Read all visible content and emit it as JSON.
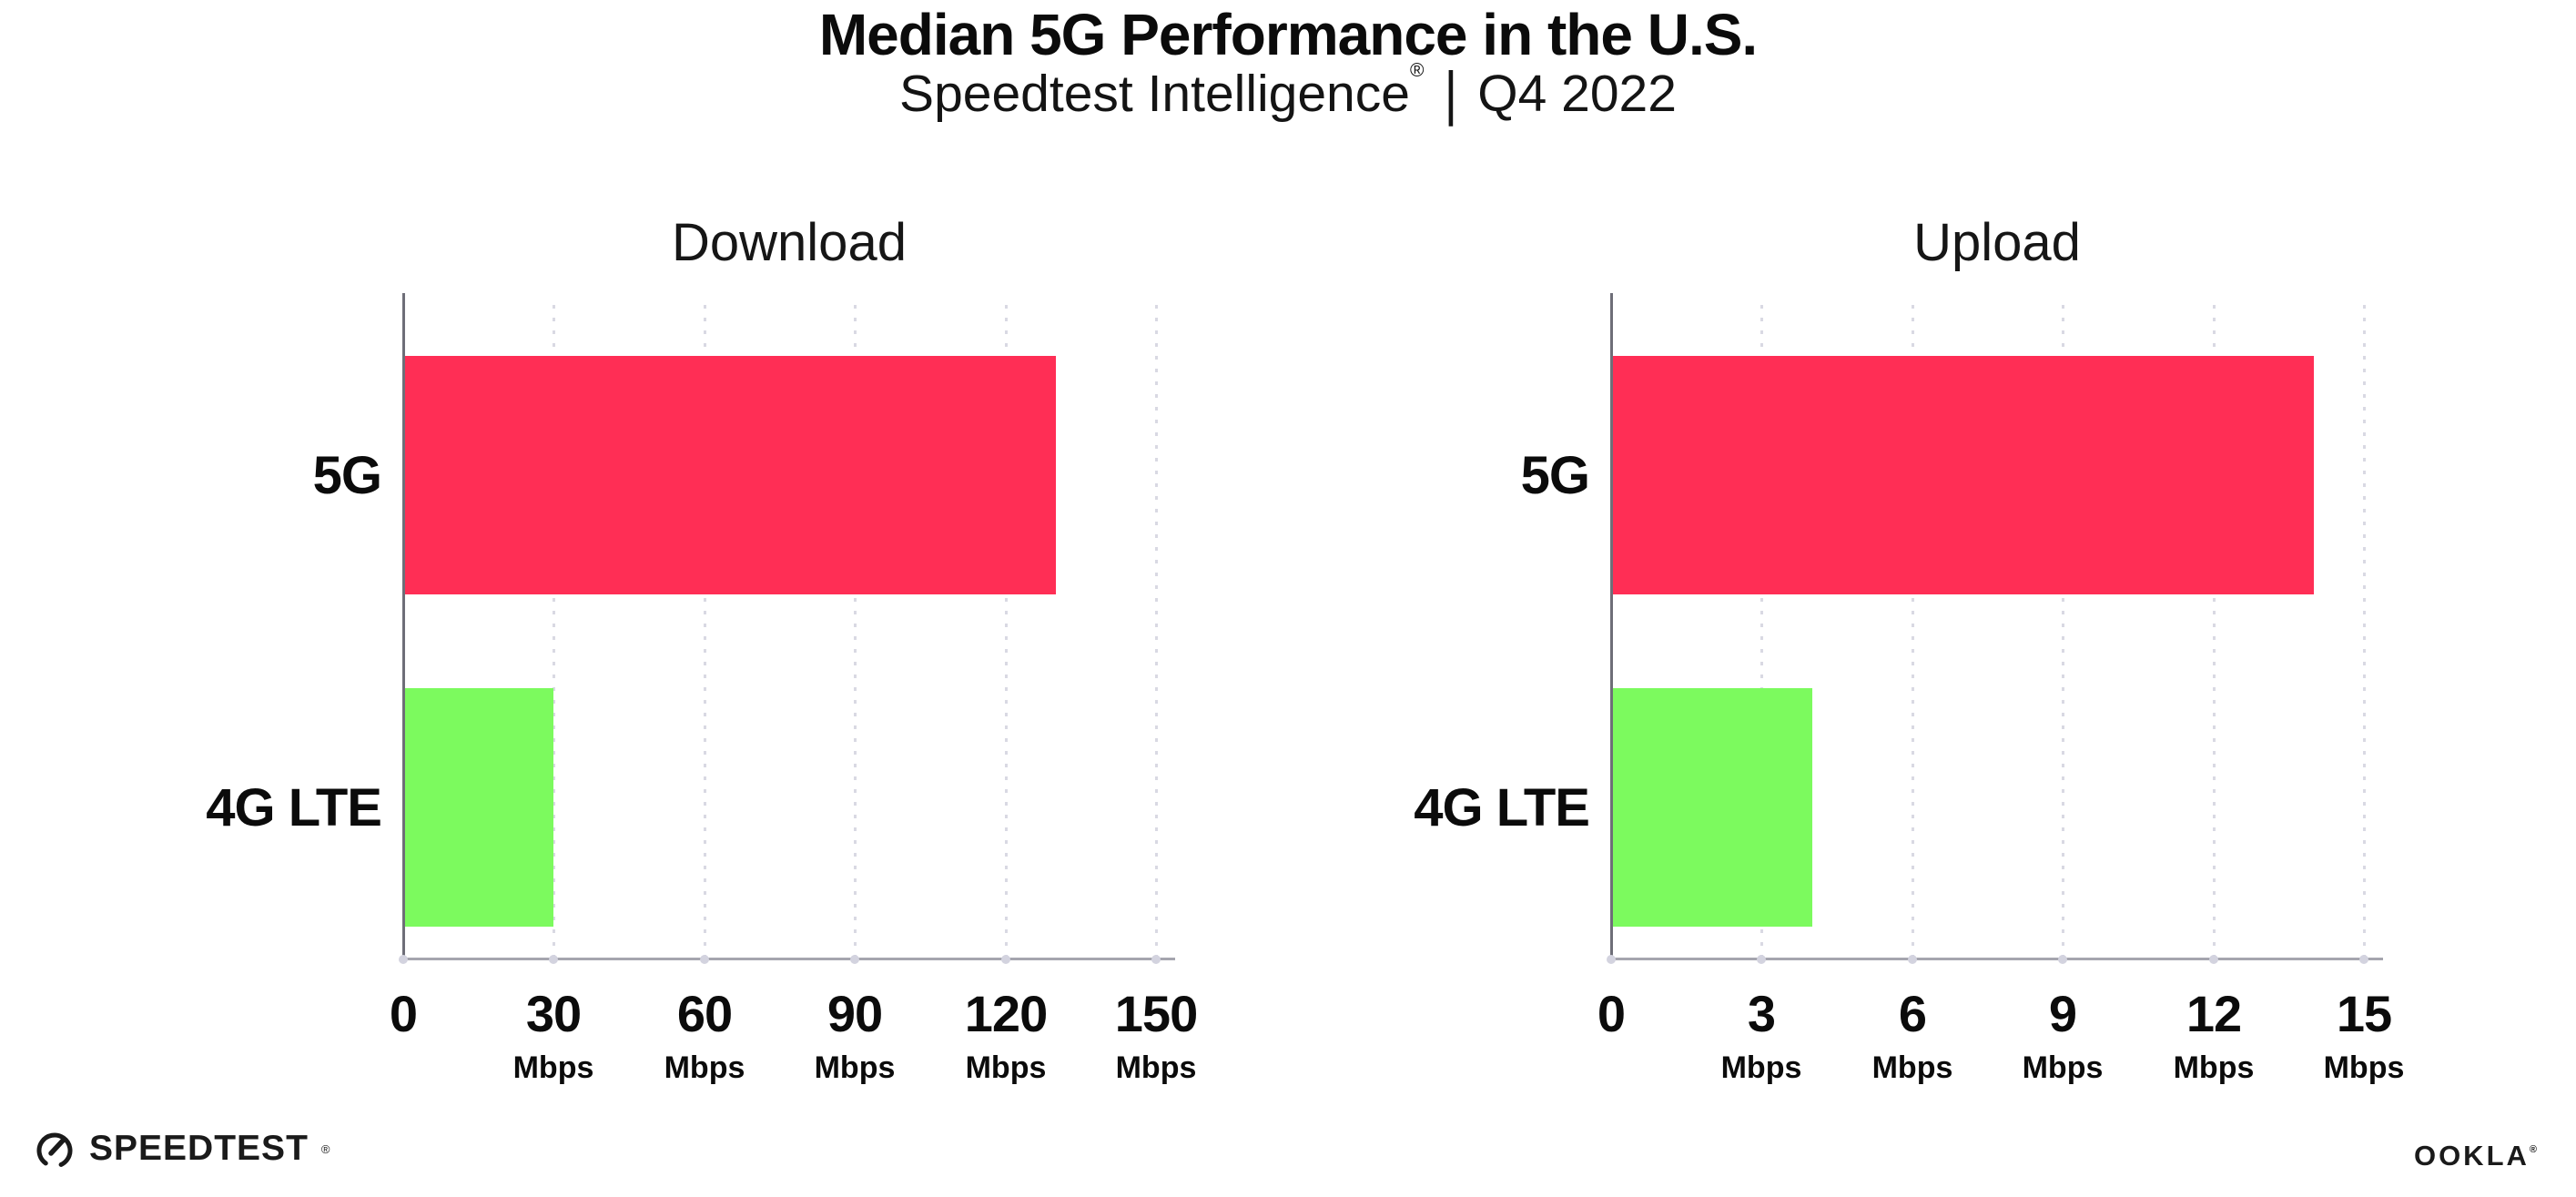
{
  "header": {
    "title": "Median 5G Performance in the U.S.",
    "product": "Speedtest Intelligence",
    "trademark": "®",
    "divider": "|",
    "period": "Q4 2022"
  },
  "chart_data": {
    "type": "bar",
    "orientation": "horizontal",
    "categories": [
      "5G",
      "4G LTE"
    ],
    "colors": {
      "5G": "#FF2E55",
      "4G LTE": "#7CFA5E"
    },
    "grid": "dotted-vertical-gridlines",
    "legend": "none",
    "charts": [
      {
        "title": "Download",
        "unit": "Mbps",
        "xlim": [
          0,
          150
        ],
        "ticks": [
          0,
          30,
          60,
          90,
          120,
          150
        ],
        "tick_labels": [
          "0",
          "30",
          "60",
          "90",
          "120",
          "150"
        ],
        "tick_units": [
          "",
          "Mbps",
          "Mbps",
          "Mbps",
          "Mbps",
          "Mbps"
        ],
        "values": [
          130,
          30
        ]
      },
      {
        "title": "Upload",
        "unit": "Mbps",
        "xlim": [
          0,
          15
        ],
        "ticks": [
          0,
          3,
          6,
          9,
          12,
          15
        ],
        "tick_labels": [
          "0",
          "3",
          "6",
          "9",
          "12",
          "15"
        ],
        "tick_units": [
          "",
          "Mbps",
          "Mbps",
          "Mbps",
          "Mbps",
          "Mbps"
        ],
        "values": [
          14,
          4
        ]
      }
    ]
  },
  "footer": {
    "speedtest": "SPEEDTEST",
    "speedtest_mark": "®",
    "ookla": "OOKLA",
    "ookla_mark": "®"
  }
}
